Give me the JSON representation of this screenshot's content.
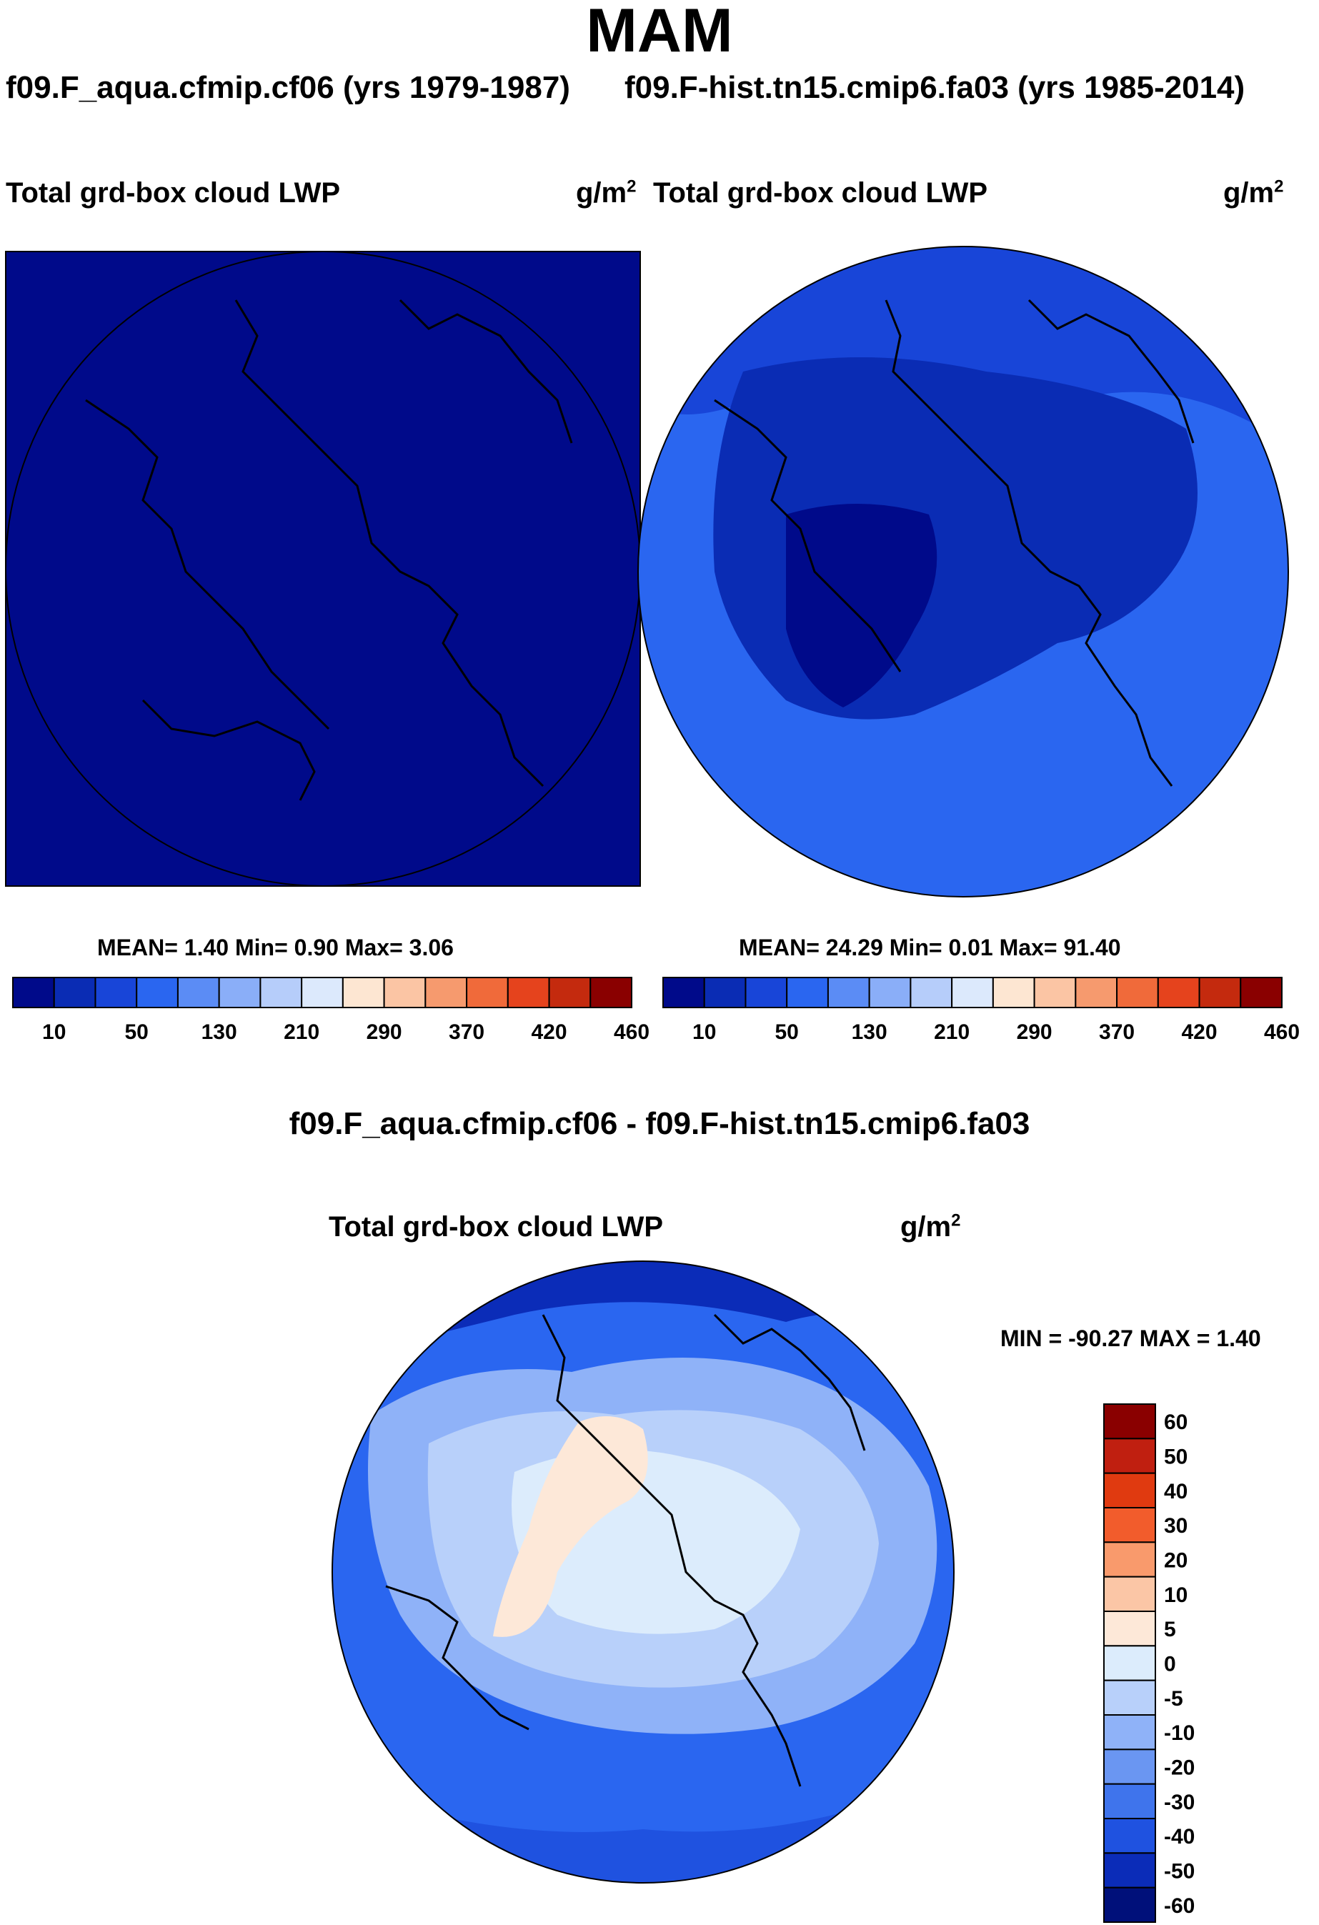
{
  "title": "MAM",
  "panels": [
    {
      "case": "f09.F_aqua.cfmip.cf06 (yrs 1979-1987)",
      "variable": "Total grd-box cloud LWP",
      "units_base": "g/m",
      "units_exp": "2",
      "stats": "MEAN=   1.40  Min=   0.90  Max=   3.06"
    },
    {
      "case": "f09.F-hist.tn15.cmip6.fa03 (yrs 1985-2014)",
      "variable": "Total grd-box cloud LWP",
      "units_base": "g/m",
      "units_exp": "2",
      "stats": "MEAN=  24.29  Min=   0.01  Max=  91.40"
    }
  ],
  "diff": {
    "title": "f09.F_aqua.cfmip.cf06 - f09.F-hist.tn15.cmip6.fa03",
    "variable": "Total grd-box cloud LWP",
    "units_base": "g/m",
    "units_exp": "2",
    "stats": "MIN = -90.27 MAX =   1.40"
  },
  "chart_data": [
    {
      "type": "heatmap",
      "projection": "north-polar-stereographic",
      "mean": 1.4,
      "min": 0.9,
      "max": 3.06,
      "colorbar_labels": [
        "10",
        "50",
        "130",
        "210",
        "290",
        "370",
        "420",
        "460"
      ],
      "colorbar_colors": [
        "#000a8a",
        "#0a2cb4",
        "#1845d8",
        "#2a66f0",
        "#5b8cf5",
        "#8aaef8",
        "#b6cdfa",
        "#dce9fc",
        "#fde6d2",
        "#fbc5a4",
        "#f69a6e",
        "#f06a3a",
        "#e5431d",
        "#c42a0e",
        "#8a0000"
      ],
      "legend": "bottom"
    },
    {
      "type": "heatmap",
      "projection": "north-polar-stereographic",
      "mean": 24.29,
      "min": 0.01,
      "max": 91.4,
      "colorbar_labels": [
        "10",
        "50",
        "130",
        "210",
        "290",
        "370",
        "420",
        "460"
      ],
      "colorbar_colors": [
        "#000a8a",
        "#0a2cb4",
        "#1845d8",
        "#2a66f0",
        "#5b8cf5",
        "#8aaef8",
        "#b6cdfa",
        "#dce9fc",
        "#fde6d2",
        "#fbc5a4",
        "#f69a6e",
        "#f06a3a",
        "#e5431d",
        "#c42a0e",
        "#8a0000"
      ],
      "legend": "bottom"
    },
    {
      "type": "heatmap",
      "projection": "north-polar-stereographic",
      "min": -90.27,
      "max": 1.4,
      "colorbar_labels": [
        "60",
        "50",
        "40",
        "30",
        "20",
        "10",
        "5",
        "0",
        "-5",
        "-10",
        "-20",
        "-30",
        "-40",
        "-50",
        "-60"
      ],
      "colorbar_colors": [
        "#8a0000",
        "#c01f10",
        "#e03a10",
        "#f25c2c",
        "#f99a6c",
        "#fbc6a6",
        "#fde8d8",
        "#dcecfc",
        "#b8d0fa",
        "#8fb2f8",
        "#6a96f2",
        "#3f74ec",
        "#1f52e0",
        "#0b2cb8",
        "#00107a"
      ],
      "legend": "right"
    }
  ]
}
